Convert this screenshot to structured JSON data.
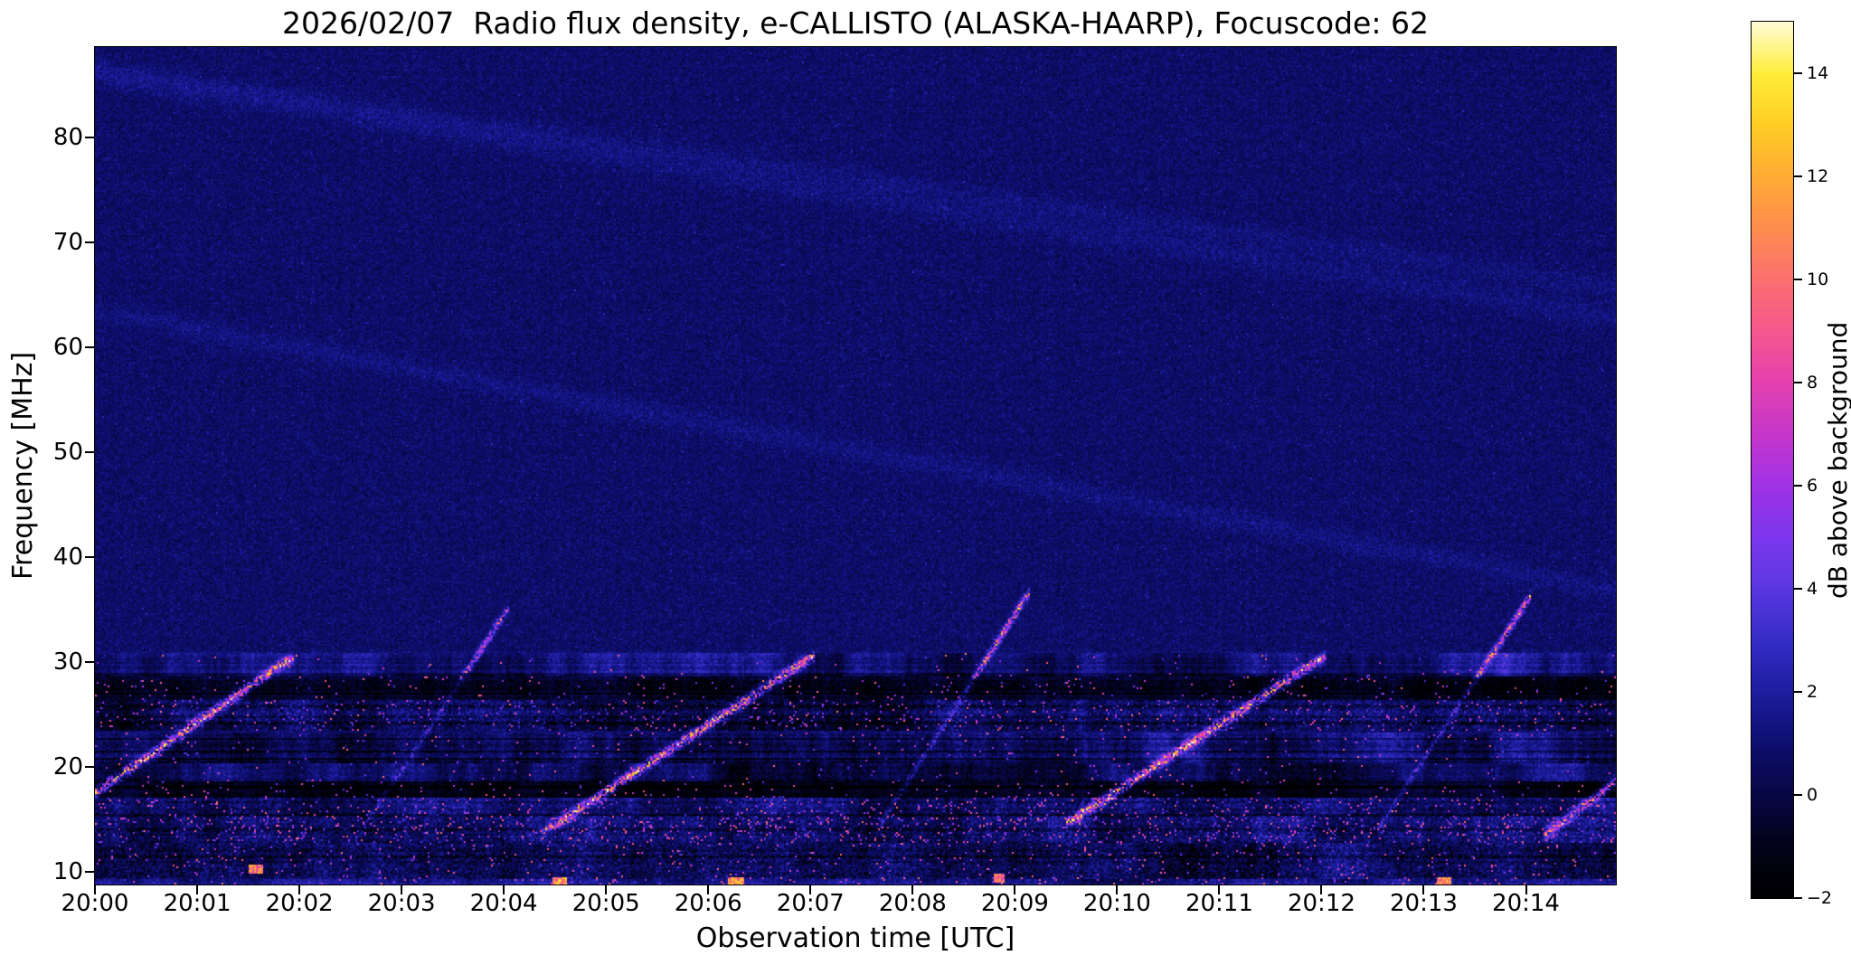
{
  "chart_data": {
    "type": "heatmap",
    "title": "2026/02/07  Radio flux density, e-CALLISTO (ALASKA-HAARP), Focuscode: 62",
    "xlabel": "Observation time [UTC]",
    "ylabel": "Frequency [MHz]",
    "colorbar_label": "dB above background",
    "x_axis": {
      "range_minutes": [
        0,
        14.88
      ],
      "tick_labels": [
        "20:00",
        "20:01",
        "20:02",
        "20:03",
        "20:04",
        "20:05",
        "20:06",
        "20:07",
        "20:08",
        "20:09",
        "20:10",
        "20:11",
        "20:12",
        "20:13",
        "20:14"
      ],
      "tick_minutes": [
        0,
        1,
        2,
        3,
        4,
        5,
        6,
        7,
        8,
        9,
        10,
        11,
        12,
        13,
        14
      ]
    },
    "y_axis": {
      "range_mhz": [
        8.8,
        88.6
      ],
      "tick_labels": [
        "10",
        "20",
        "30",
        "40",
        "50",
        "60",
        "70",
        "80"
      ],
      "tick_values": [
        10,
        20,
        30,
        40,
        50,
        60,
        70,
        80
      ]
    },
    "colorbar": {
      "range_db": [
        -2,
        15
      ],
      "tick_labels": [
        "−2",
        "0",
        "2",
        "4",
        "6",
        "8",
        "10",
        "12",
        "14"
      ],
      "tick_values": [
        -2,
        0,
        2,
        4,
        6,
        8,
        10,
        12,
        14
      ]
    },
    "colormap_stops": [
      [
        -2.0,
        [
          0,
          0,
          0
        ]
      ],
      [
        -1.0,
        [
          3,
          3,
          25
        ]
      ],
      [
        0.0,
        [
          8,
          8,
          70
        ]
      ],
      [
        1.0,
        [
          15,
          15,
          112
        ]
      ],
      [
        2.0,
        [
          30,
          30,
          160
        ]
      ],
      [
        3.0,
        [
          55,
          45,
          200
        ]
      ],
      [
        4.0,
        [
          90,
          55,
          225
        ]
      ],
      [
        5.0,
        [
          125,
          55,
          238
        ]
      ],
      [
        6.0,
        [
          160,
          50,
          230
        ]
      ],
      [
        7.0,
        [
          198,
          55,
          205
        ]
      ],
      [
        8.0,
        [
          228,
          65,
          175
        ]
      ],
      [
        9.0,
        [
          245,
          88,
          142
        ]
      ],
      [
        10.0,
        [
          252,
          112,
          112
        ]
      ],
      [
        11.0,
        [
          255,
          142,
          80
        ]
      ],
      [
        12.0,
        [
          255,
          172,
          52
        ]
      ],
      [
        13.0,
        [
          255,
          205,
          38
        ]
      ],
      [
        14.0,
        [
          255,
          238,
          60
        ]
      ],
      [
        15.0,
        [
          255,
          252,
          215
        ]
      ]
    ],
    "background": {
      "mean_db": 0.8,
      "noise_sd_db": 0.45
    },
    "rfi_bands": [
      {
        "f_low": 28.7,
        "f_high": 30.8,
        "mode": "patchy",
        "base": 0.7,
        "noise": 0.9,
        "bright_p": 0.006
      },
      {
        "f_low": 26.3,
        "f_high": 28.7,
        "mode": "blackout",
        "base": -1.6,
        "noise": 1.4,
        "bright_p": 0.02
      },
      {
        "f_low": 23.4,
        "f_high": 26.3,
        "mode": "speckle",
        "base": -0.7,
        "noise": 2.2,
        "bright_p": 0.04
      },
      {
        "f_low": 20.4,
        "f_high": 23.2,
        "mode": "patchy",
        "base": 0.5,
        "noise": 1.1,
        "bright_p": 0.012
      },
      {
        "f_low": 18.6,
        "f_high": 20.4,
        "mode": "patchy",
        "base": 0.3,
        "noise": 1.0,
        "bright_p": 0.01
      },
      {
        "f_low": 17.1,
        "f_high": 18.6,
        "mode": "blackout",
        "base": -1.7,
        "noise": 1.3,
        "bright_p": 0.02
      },
      {
        "f_low": 15.4,
        "f_high": 17.1,
        "mode": "speckle",
        "base": -0.5,
        "noise": 2.0,
        "bright_p": 0.05
      },
      {
        "f_low": 12.7,
        "f_high": 15.4,
        "mode": "speckle",
        "base": -0.4,
        "noise": 2.2,
        "bright_p": 0.07
      },
      {
        "f_low": 9.4,
        "f_high": 12.7,
        "mode": "dense",
        "base": -1.0,
        "noise": 2.4,
        "bright_p": 0.025
      },
      {
        "f_low": 8.8,
        "f_high": 9.4,
        "mode": "speckle",
        "base": 0.9,
        "noise": 1.4,
        "bright_p": 0.04
      }
    ],
    "sweeps": [
      {
        "t0": -0.3,
        "f0": 15.5,
        "t1": 1.95,
        "f1": 30.6,
        "peak_db": 13,
        "bright_range": [
          14,
          30.6
        ]
      },
      {
        "t0": 2.55,
        "f0": 13.0,
        "t1": 4.05,
        "f1": 35.2,
        "peak_db": 9,
        "bright_range": [
          29,
          35.2
        ]
      },
      {
        "t0": 4.35,
        "f0": 13.5,
        "t1": 7.05,
        "f1": 30.7,
        "peak_db": 13,
        "bright_range": [
          14,
          30.7
        ]
      },
      {
        "t0": 7.65,
        "f0": 14.0,
        "t1": 9.15,
        "f1": 36.8,
        "peak_db": 12,
        "bright_range": [
          28.5,
          36.8
        ]
      },
      {
        "t0": 9.5,
        "f0": 14.5,
        "t1": 12.05,
        "f1": 30.7,
        "peak_db": 13,
        "bright_range": [
          14.5,
          30.7
        ]
      },
      {
        "t0": 12.55,
        "f0": 14.0,
        "t1": 14.05,
        "f1": 36.4,
        "peak_db": 11,
        "bright_range": [
          28.5,
          36.4
        ]
      },
      {
        "t0": 14.18,
        "f0": 13.5,
        "t1": 14.88,
        "f1": 18.6,
        "peak_db": 10,
        "bright_range": [
          12,
          19
        ]
      }
    ],
    "faint_streaks": [
      {
        "t0": 0,
        "f0": 63.5,
        "slope_mhz_per_min": -1.8,
        "amp": 0.5,
        "width": 0.7
      },
      {
        "t0": 3.5,
        "f0": 80.5,
        "slope_mhz_per_min": -1.55,
        "amp": 0.45,
        "width": 0.8
      },
      {
        "t0": 0,
        "f0": 86.5,
        "slope_mhz_per_min": -1.4,
        "amp": 0.4,
        "width": 0.7
      }
    ],
    "hotspots": [
      {
        "t": 1.58,
        "f": 10.2,
        "dt": 0.07,
        "df": 0.45,
        "peak_db": 13
      },
      {
        "t": 4.55,
        "f": 9.0,
        "dt": 0.07,
        "df": 0.45,
        "peak_db": 14
      },
      {
        "t": 6.28,
        "f": 9.0,
        "dt": 0.08,
        "df": 0.45,
        "peak_db": 14
      },
      {
        "t": 8.85,
        "f": 9.4,
        "dt": 0.05,
        "df": 0.4,
        "peak_db": 12
      },
      {
        "t": 13.2,
        "f": 9.0,
        "dt": 0.07,
        "df": 0.45,
        "peak_db": 13
      }
    ]
  }
}
